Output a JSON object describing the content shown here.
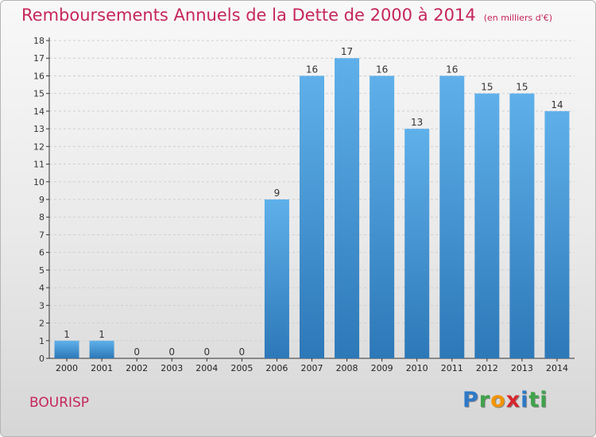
{
  "title": "Remboursements Annuels de la Dette de 2000 à 2014",
  "unit_note": "(en milliers d'€)",
  "commune": "BOURISP",
  "logo": [
    "P",
    "r",
    "o",
    "x",
    "i",
    "ti"
  ],
  "colors": {
    "title": "#c6265a",
    "bar_top": "#5fb0ea",
    "bar_bottom": "#2d78b8",
    "axis": "#333333",
    "grid": "#cfcfcf"
  },
  "chart_data": {
    "type": "bar",
    "title": "Remboursements Annuels de la Dette de 2000 à 2014",
    "xlabel": "",
    "ylabel": "",
    "categories": [
      "2000",
      "2001",
      "2002",
      "2003",
      "2004",
      "2005",
      "2006",
      "2007",
      "2008",
      "2009",
      "2010",
      "2011",
      "2012",
      "2013",
      "2014"
    ],
    "values": [
      1,
      1,
      0,
      0,
      0,
      0,
      9,
      16,
      17,
      16,
      13,
      16,
      15,
      15,
      14
    ],
    "ylim": [
      0,
      18
    ],
    "yticks": [
      0,
      1,
      2,
      3,
      4,
      5,
      6,
      7,
      8,
      9,
      10,
      11,
      12,
      13,
      14,
      15,
      16,
      17,
      18
    ],
    "grid": true
  }
}
